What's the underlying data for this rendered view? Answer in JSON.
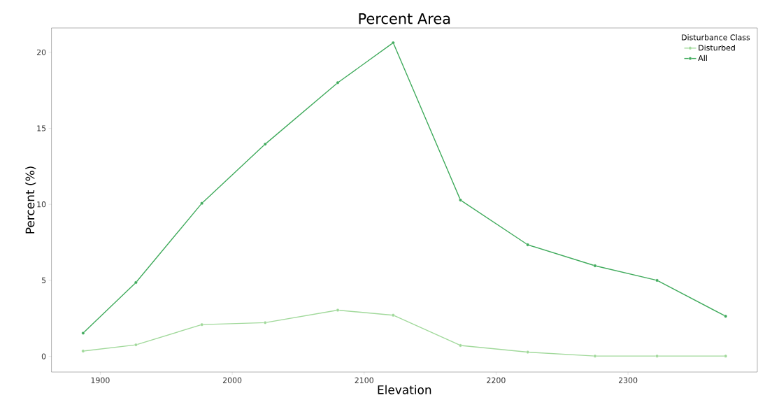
{
  "chart_data": {
    "type": "line",
    "title": "Percent Area",
    "xlabel": "Elevation",
    "ylabel": "Percent (%)",
    "legend_title": "Disturbance Class",
    "x": [
      1887,
      1927,
      1977,
      2025,
      2080,
      2122,
      2173,
      2224,
      2275,
      2322,
      2374
    ],
    "series": [
      {
        "name": "Disturbed",
        "color": "#a1d99b",
        "values": [
          0.35,
          0.76,
          2.09,
          2.22,
          3.04,
          2.71,
          0.72,
          0.28,
          0.02,
          0.02,
          0.02
        ]
      },
      {
        "name": "All",
        "color": "#41ab5d",
        "values": [
          1.53,
          4.86,
          10.07,
          13.96,
          18.0,
          20.63,
          10.28,
          7.34,
          5.96,
          5.0,
          2.64
        ]
      }
    ],
    "xlim": [
      1863,
      2398
    ],
    "ylim": [
      -1.03,
      21.6
    ],
    "xticks": [
      1900,
      2000,
      2100,
      2200,
      2300
    ],
    "yticks": [
      0,
      5,
      10,
      15,
      20
    ],
    "grid": false,
    "legend": "top right",
    "marker": "circle",
    "line_style": "solid"
  }
}
